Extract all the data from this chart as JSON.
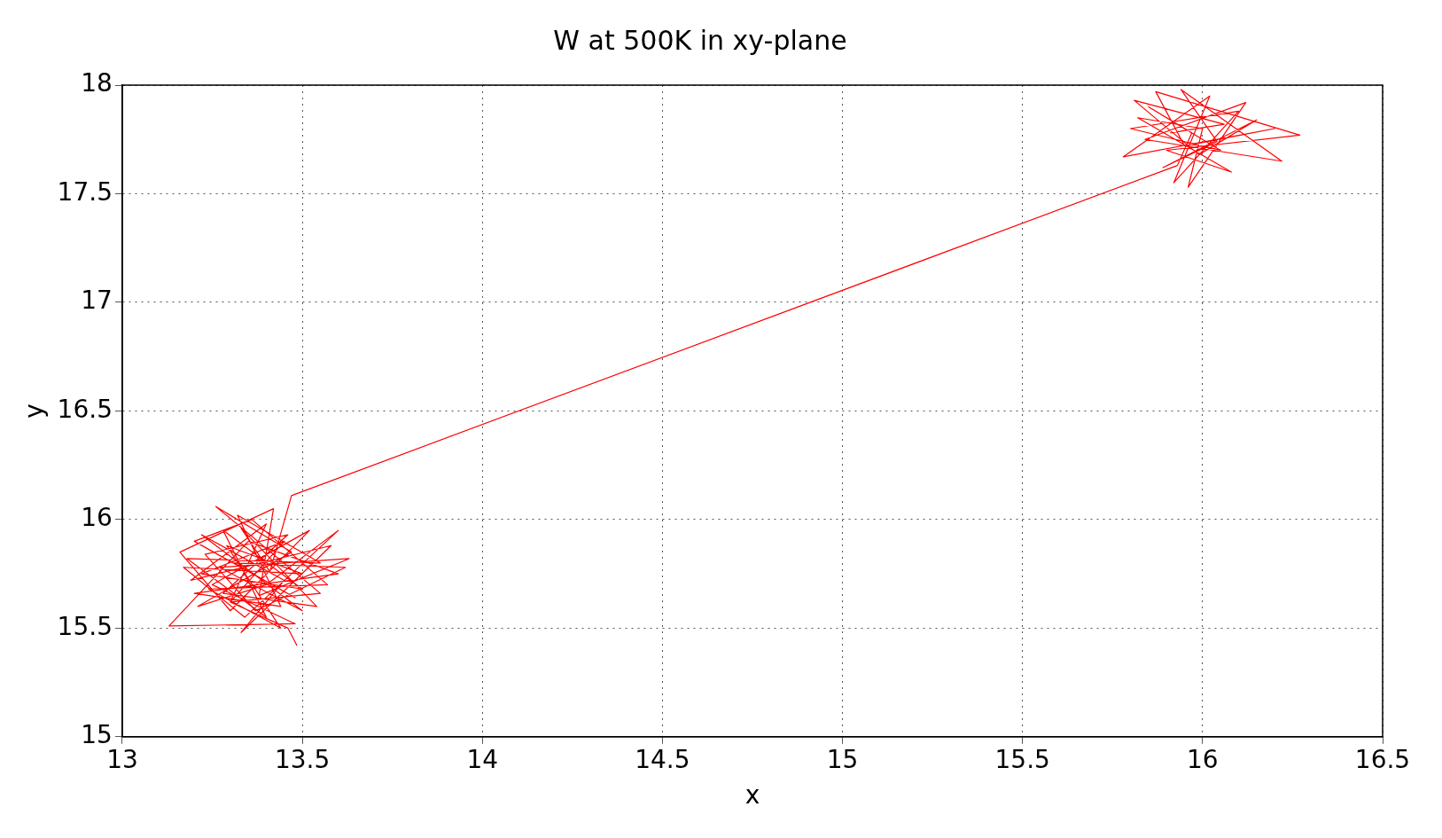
{
  "chart_data": {
    "type": "line",
    "title": "W at 500K in xy-plane",
    "xlabel": "x",
    "ylabel": "y",
    "xlim": [
      13,
      16.5
    ],
    "xticks": [
      13,
      13.5,
      14,
      14.5,
      15,
      15.5,
      16,
      16.5
    ],
    "ylim": [
      15,
      18
    ],
    "yticks": [
      15,
      15.5,
      16,
      16.5,
      17,
      17.5,
      18
    ],
    "grid": true,
    "marker": "none",
    "line_style": "solid",
    "x": [
      13.485,
      13.46,
      13.3,
      13.45,
      13.22,
      13.5,
      13.28,
      13.4,
      13.18,
      13.55,
      13.32,
      13.44,
      13.2,
      13.6,
      13.35,
      13.13,
      13.48,
      13.25,
      13.52,
      13.3,
      13.16,
      13.42,
      13.38,
      13.63,
      13.27,
      13.5,
      13.22,
      13.45,
      13.33,
      13.58,
      13.19,
      13.4,
      13.3,
      13.55,
      13.26,
      13.47,
      13.21,
      13.4,
      13.6,
      13.34,
      13.17,
      13.5,
      13.29,
      13.44,
      13.24,
      13.57,
      13.36,
      13.2,
      13.48,
      13.31,
      13.62,
      13.37,
      13.23,
      13.46,
      13.28,
      13.54,
      13.33,
      13.41,
      13.47,
      15.93,
      15.97,
      15.85,
      16.05,
      15.8,
      16.1,
      15.92,
      16.02,
      15.78,
      16.2,
      15.95,
      15.87,
      16.27,
      15.9,
      16.08,
      15.82,
      16.0,
      15.96,
      16.12,
      15.84,
      16.22,
      15.94,
      16.04,
      15.89,
      16.15,
      15.99,
      15.81,
      16.06,
      15.91
    ],
    "series": [
      {
        "color": "#ff0000",
        "values": [
          15.42,
          15.5,
          15.62,
          15.9,
          15.75,
          15.68,
          15.95,
          15.55,
          15.82,
          15.8,
          16.02,
          15.6,
          15.66,
          15.75,
          15.9,
          15.51,
          15.52,
          15.7,
          15.95,
          15.58,
          15.85,
          16.05,
          15.65,
          15.82,
          15.78,
          15.58,
          15.93,
          15.72,
          15.48,
          15.88,
          15.72,
          15.98,
          15.62,
          15.66,
          16.06,
          15.85,
          15.6,
          15.7,
          15.95,
          15.55,
          15.78,
          15.75,
          15.88,
          15.5,
          15.68,
          15.7,
          16.0,
          15.9,
          15.64,
          15.8,
          15.78,
          15.58,
          15.84,
          15.93,
          15.66,
          15.6,
          15.96,
          15.76,
          16.11,
          17.63,
          17.78,
          17.9,
          17.7,
          17.8,
          17.88,
          17.55,
          17.95,
          17.67,
          17.8,
          17.72,
          17.97,
          17.77,
          17.7,
          17.6,
          17.85,
          17.8,
          17.53,
          17.92,
          17.75,
          17.65,
          17.98,
          17.74,
          17.62,
          17.84,
          17.68,
          17.93,
          17.82,
          17.78
        ]
      }
    ]
  }
}
